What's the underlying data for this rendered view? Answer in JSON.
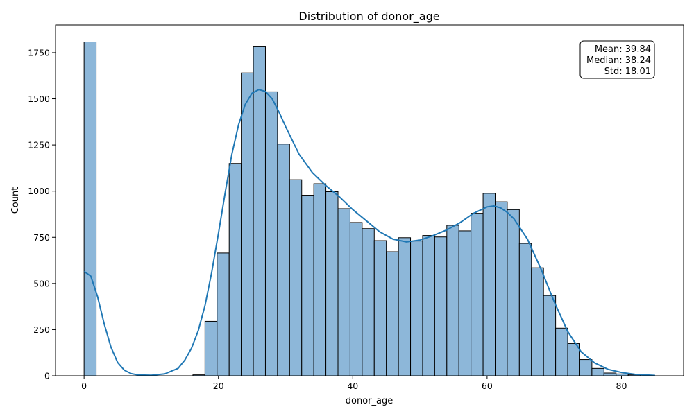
{
  "chart_data": {
    "type": "bar",
    "subtype": "histogram-with-kde",
    "title": "Distribution of donor_age",
    "xlabel": "donor_age",
    "ylabel": "Count",
    "xlim": [
      -4.25,
      89.25
    ],
    "ylim": [
      0,
      1900
    ],
    "xticks": [
      0,
      20,
      40,
      60,
      80
    ],
    "yticks": [
      0,
      250,
      500,
      750,
      1000,
      1250,
      1500,
      1750
    ],
    "grid": false,
    "bar_color": "#8db7d9",
    "edge_color": "#000000",
    "kde_color": "#1f77b4",
    "bin_width": 1.8,
    "bins": [
      {
        "x0": 0.0,
        "count": 1808
      },
      {
        "x0": 16.2,
        "count": 5
      },
      {
        "x0": 18.0,
        "count": 295
      },
      {
        "x0": 19.8,
        "count": 665
      },
      {
        "x0": 21.6,
        "count": 1150
      },
      {
        "x0": 23.4,
        "count": 1640
      },
      {
        "x0": 25.2,
        "count": 1782
      },
      {
        "x0": 27.0,
        "count": 1538
      },
      {
        "x0": 28.8,
        "count": 1255
      },
      {
        "x0": 30.6,
        "count": 1062
      },
      {
        "x0": 32.4,
        "count": 978
      },
      {
        "x0": 34.2,
        "count": 1040
      },
      {
        "x0": 36.0,
        "count": 997
      },
      {
        "x0": 37.8,
        "count": 905
      },
      {
        "x0": 39.6,
        "count": 830
      },
      {
        "x0": 41.4,
        "count": 797
      },
      {
        "x0": 43.2,
        "count": 732
      },
      {
        "x0": 45.0,
        "count": 672
      },
      {
        "x0": 46.8,
        "count": 748
      },
      {
        "x0": 48.6,
        "count": 730
      },
      {
        "x0": 50.4,
        "count": 760
      },
      {
        "x0": 52.2,
        "count": 752
      },
      {
        "x0": 54.0,
        "count": 815
      },
      {
        "x0": 55.8,
        "count": 785
      },
      {
        "x0": 57.6,
        "count": 880
      },
      {
        "x0": 59.4,
        "count": 988
      },
      {
        "x0": 61.2,
        "count": 942
      },
      {
        "x0": 63.0,
        "count": 900
      },
      {
        "x0": 64.8,
        "count": 717
      },
      {
        "x0": 66.6,
        "count": 585
      },
      {
        "x0": 68.4,
        "count": 435
      },
      {
        "x0": 70.2,
        "count": 258
      },
      {
        "x0": 72.0,
        "count": 175
      },
      {
        "x0": 73.8,
        "count": 88
      },
      {
        "x0": 75.6,
        "count": 40
      },
      {
        "x0": 77.4,
        "count": 15
      },
      {
        "x0": 79.2,
        "count": 10
      },
      {
        "x0": 81.0,
        "count": 5
      }
    ],
    "kde": {
      "x": [
        0,
        1,
        2,
        3,
        4,
        5,
        6,
        7,
        8,
        10,
        12,
        14,
        15,
        16,
        17,
        18,
        19,
        20,
        21,
        22,
        23,
        24,
        25,
        26,
        27,
        28,
        29,
        30,
        32,
        34,
        36,
        38,
        40,
        42,
        44,
        46,
        48,
        50,
        52,
        54,
        56,
        58,
        60,
        61,
        62,
        63,
        64,
        66,
        68,
        70,
        72,
        74,
        76,
        78,
        80,
        82,
        85
      ],
      "y": [
        565,
        540,
        430,
        280,
        155,
        72,
        30,
        12,
        5,
        3,
        10,
        40,
        85,
        150,
        245,
        380,
        560,
        770,
        990,
        1200,
        1360,
        1470,
        1530,
        1550,
        1540,
        1500,
        1430,
        1350,
        1200,
        1100,
        1030,
        970,
        900,
        840,
        780,
        740,
        725,
        735,
        760,
        790,
        830,
        880,
        915,
        920,
        910,
        885,
        850,
        740,
        580,
        400,
        240,
        130,
        70,
        35,
        18,
        8,
        2
      ]
    },
    "stats_box": {
      "lines": [
        "Mean: 39.84",
        "Median: 38.24",
        "Std: 18.01"
      ],
      "placement": "top-right"
    }
  }
}
